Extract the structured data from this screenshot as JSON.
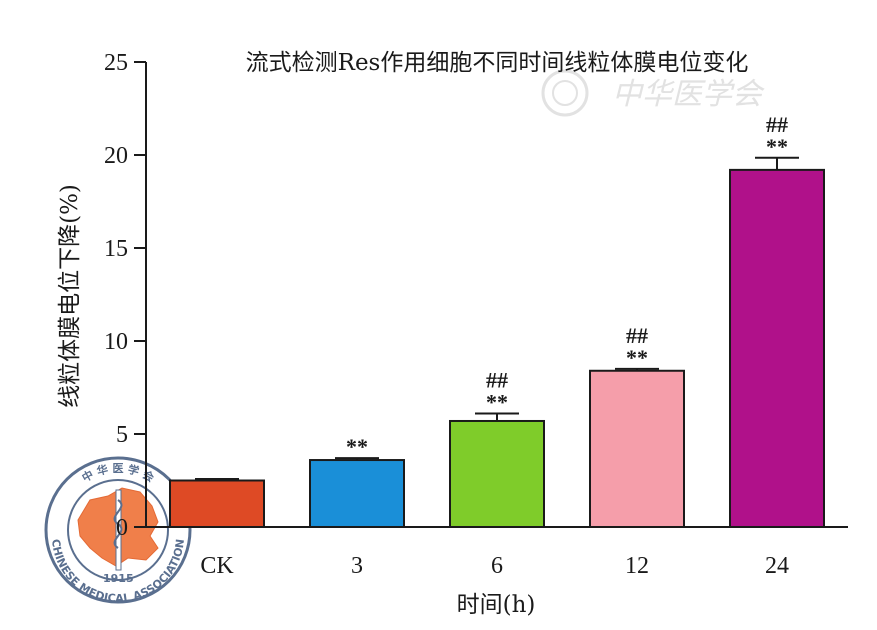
{
  "chart_data": {
    "type": "bar",
    "title": "流式检测Res作用细胞不同时间线粒体膜电位变化",
    "xlabel": "时间(h)",
    "ylabel": "线粒体膜电位下降(%)",
    "categories": [
      "CK",
      "3",
      "6",
      "12",
      "24"
    ],
    "values": [
      2.5,
      3.6,
      5.7,
      8.4,
      19.2
    ],
    "errors": [
      0.08,
      0.1,
      0.4,
      0.1,
      0.65
    ],
    "colors": [
      "#de4a25",
      "#1a8fd8",
      "#7fcc2a",
      "#f59eaa",
      "#b0118a"
    ],
    "significance": [
      {
        "top": "",
        "bottom": ""
      },
      {
        "top": "",
        "bottom": "**"
      },
      {
        "top": "##",
        "bottom": "**"
      },
      {
        "top": "##",
        "bottom": "**"
      },
      {
        "top": "##",
        "bottom": "**"
      }
    ],
    "ylim": [
      0,
      25
    ],
    "yticks": [
      "0",
      "5",
      "10",
      "15",
      "20",
      "25"
    ],
    "ytick_values": [
      0,
      5,
      10,
      15,
      20,
      25
    ],
    "grid": false,
    "legend": "none"
  },
  "watermark": {
    "text": "中华医学会",
    "seal_top": "中 华 医 学 会",
    "seal_bottom": "CHINESE MEDICAL ASSOCIATION",
    "seal_year": "1915"
  }
}
